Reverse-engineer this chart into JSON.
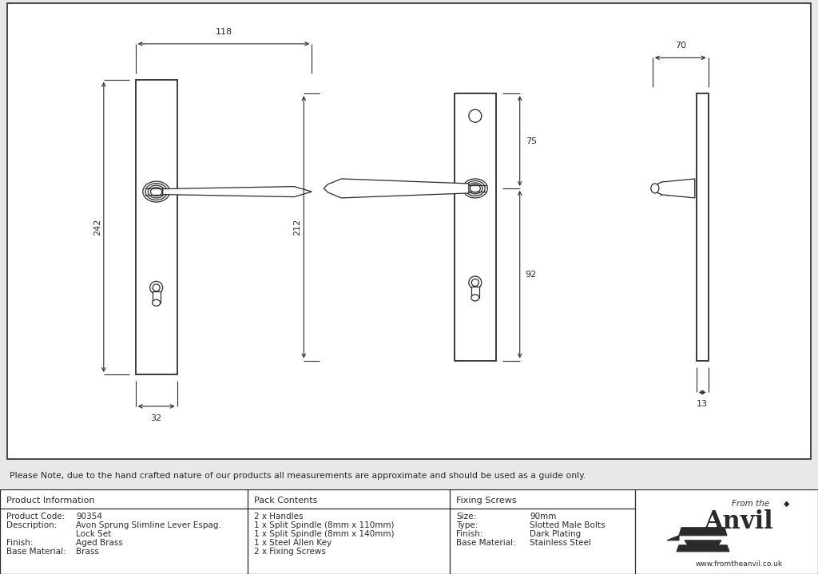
{
  "bg_color": "#e8e8e8",
  "drawing_bg": "#ffffff",
  "line_color": "#2a2a2a",
  "note_text": "Please Note, due to the hand crafted nature of our products all measurements are approximate and should be used as a guide only.",
  "product_info": {
    "header": "Product Information",
    "rows": [
      [
        "Product Code:",
        "90354"
      ],
      [
        "Description:",
        "Avon Sprung Slimline Lever Espag."
      ],
      [
        "",
        "Lock Set"
      ],
      [
        "Finish:",
        "Aged Brass"
      ],
      [
        "Base Material:",
        "Brass"
      ]
    ]
  },
  "pack_contents": {
    "header": "Pack Contents",
    "rows": [
      "2 x Handles",
      "1 x Split Spindle (8mm x 110mm)",
      "1 x Split Spindle (8mm x 140mm)",
      "1 x Steel Allen Key",
      "2 x Fixing Screws"
    ]
  },
  "fixing_screws": {
    "header": "Fixing Screws",
    "rows": [
      [
        "Size:",
        "90mm"
      ],
      [
        "Type:",
        "Slotted Male Bolts"
      ],
      [
        "Finish:",
        "Dark Plating"
      ],
      [
        "Base Material:",
        "Stainless Steel"
      ]
    ]
  }
}
